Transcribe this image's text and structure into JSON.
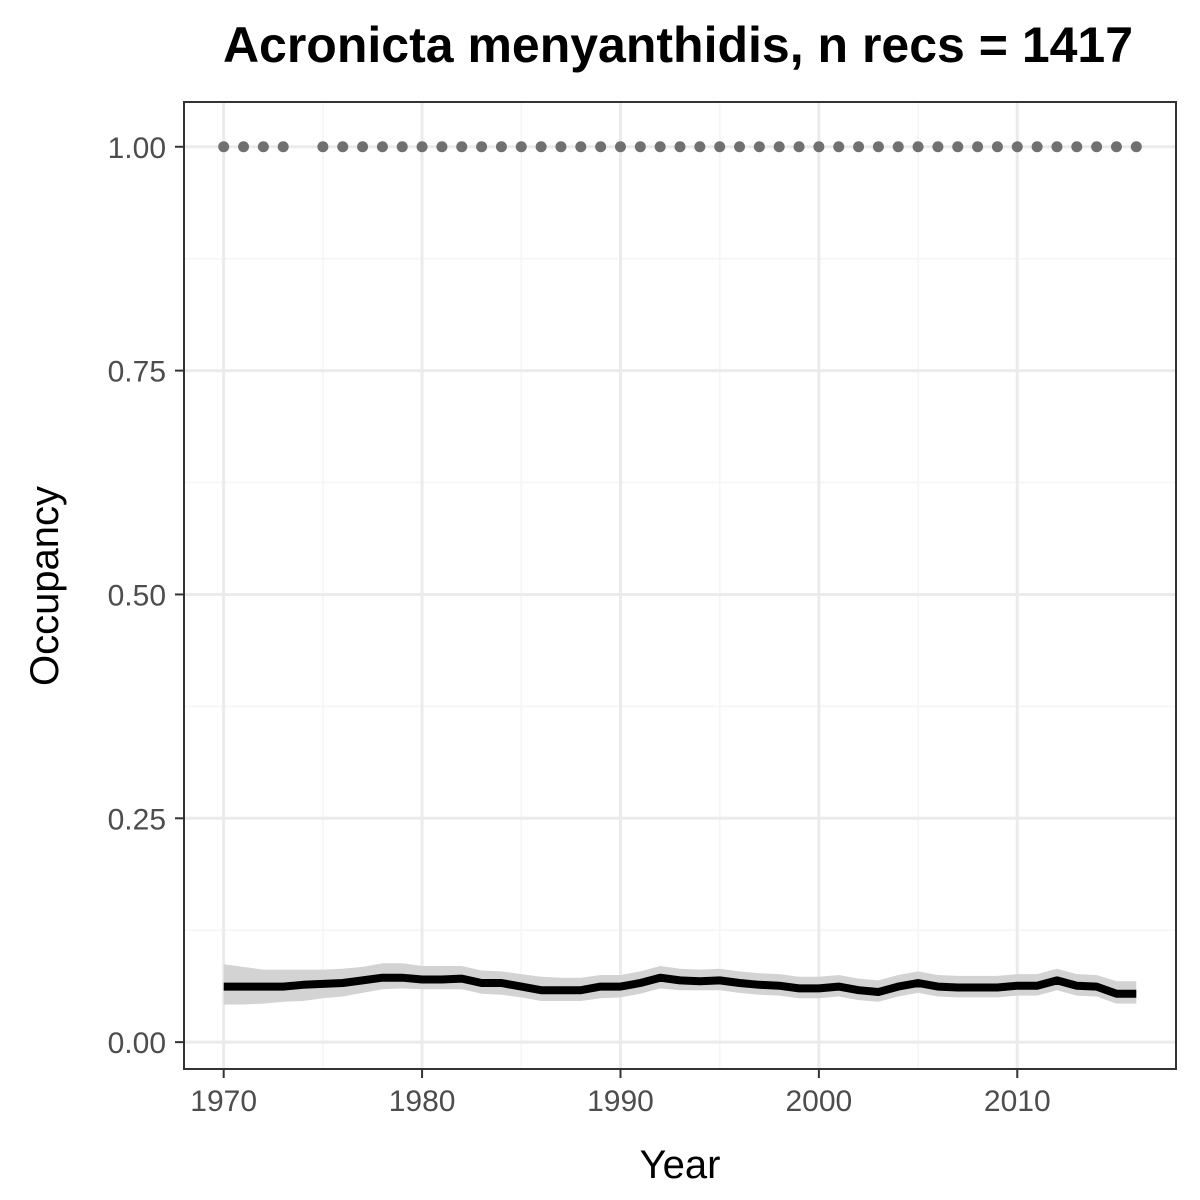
{
  "chart_data": {
    "type": "line",
    "title": "Acronicta menyanthidis, n recs = 1417",
    "xlabel": "Year",
    "ylabel": "Occupancy",
    "xlim": [
      1968,
      2018
    ],
    "ylim": [
      -0.03,
      1.05
    ],
    "x_ticks": [
      1970,
      1980,
      1990,
      2000,
      2010
    ],
    "y_ticks": [
      0.0,
      0.25,
      0.5,
      0.75,
      1.0
    ],
    "y_tick_labels": [
      "0.00",
      "0.25",
      "0.50",
      "0.75",
      "1.00"
    ],
    "grid": true,
    "series": [
      {
        "type": "line",
        "x": [
          1970,
          1971,
          1972,
          1973,
          1974,
          1975,
          1976,
          1977,
          1978,
          1979,
          1980,
          1981,
          1982,
          1983,
          1984,
          1985,
          1986,
          1987,
          1988,
          1989,
          1990,
          1991,
          1992,
          1993,
          1994,
          1995,
          1996,
          1997,
          1998,
          1999,
          2000,
          2001,
          2002,
          2003,
          2004,
          2005,
          2006,
          2007,
          2008,
          2009,
          2010,
          2011,
          2012,
          2013,
          2014,
          2015,
          2016
        ],
        "y": [
          0.062,
          0.062,
          0.062,
          0.062,
          0.064,
          0.065,
          0.066,
          0.069,
          0.072,
          0.072,
          0.07,
          0.07,
          0.071,
          0.066,
          0.066,
          0.062,
          0.058,
          0.058,
          0.058,
          0.062,
          0.062,
          0.066,
          0.072,
          0.069,
          0.068,
          0.069,
          0.066,
          0.064,
          0.063,
          0.06,
          0.06,
          0.062,
          0.058,
          0.056,
          0.062,
          0.066,
          0.062,
          0.061,
          0.061,
          0.061,
          0.063,
          0.063,
          0.069,
          0.063,
          0.062,
          0.054,
          0.054
        ],
        "lower": [
          0.042,
          0.042,
          0.043,
          0.045,
          0.046,
          0.049,
          0.051,
          0.055,
          0.059,
          0.06,
          0.059,
          0.059,
          0.059,
          0.054,
          0.053,
          0.05,
          0.046,
          0.046,
          0.046,
          0.049,
          0.05,
          0.054,
          0.06,
          0.058,
          0.058,
          0.058,
          0.055,
          0.053,
          0.052,
          0.049,
          0.049,
          0.051,
          0.047,
          0.045,
          0.051,
          0.055,
          0.051,
          0.05,
          0.05,
          0.05,
          0.052,
          0.052,
          0.058,
          0.052,
          0.051,
          0.043,
          0.043
        ],
        "upper": [
          0.087,
          0.084,
          0.081,
          0.081,
          0.081,
          0.081,
          0.082,
          0.084,
          0.088,
          0.088,
          0.085,
          0.085,
          0.085,
          0.08,
          0.079,
          0.076,
          0.073,
          0.072,
          0.072,
          0.075,
          0.075,
          0.079,
          0.085,
          0.082,
          0.081,
          0.082,
          0.079,
          0.077,
          0.076,
          0.073,
          0.073,
          0.075,
          0.071,
          0.069,
          0.075,
          0.079,
          0.075,
          0.074,
          0.074,
          0.074,
          0.076,
          0.076,
          0.082,
          0.076,
          0.075,
          0.068,
          0.068
        ],
        "color": "#000000",
        "ribbon_color": "#d3d3d3"
      },
      {
        "type": "points",
        "x": [
          1970,
          1971,
          1972,
          1973,
          1975,
          1976,
          1977,
          1978,
          1979,
          1980,
          1981,
          1982,
          1983,
          1984,
          1985,
          1986,
          1987,
          1988,
          1989,
          1990,
          1991,
          1992,
          1993,
          1994,
          1995,
          1996,
          1997,
          1998,
          1999,
          2000,
          2001,
          2002,
          2003,
          2004,
          2005,
          2006,
          2007,
          2008,
          2009,
          2010,
          2011,
          2012,
          2013,
          2014,
          2015,
          2016
        ],
        "y": [
          1,
          1,
          1,
          1,
          1,
          1,
          1,
          1,
          1,
          1,
          1,
          1,
          1,
          1,
          1,
          1,
          1,
          1,
          1,
          1,
          1,
          1,
          1,
          1,
          1,
          1,
          1,
          1,
          1,
          1,
          1,
          1,
          1,
          1,
          1,
          1,
          1,
          1,
          1,
          1,
          1,
          1,
          1,
          1,
          1,
          1
        ],
        "color": "#707070"
      }
    ]
  },
  "colors": {
    "panel_border": "#333333",
    "grid_major": "#ebebeb",
    "grid_minor": "#f5f5f5",
    "tick_label": "#4d4d4d"
  }
}
